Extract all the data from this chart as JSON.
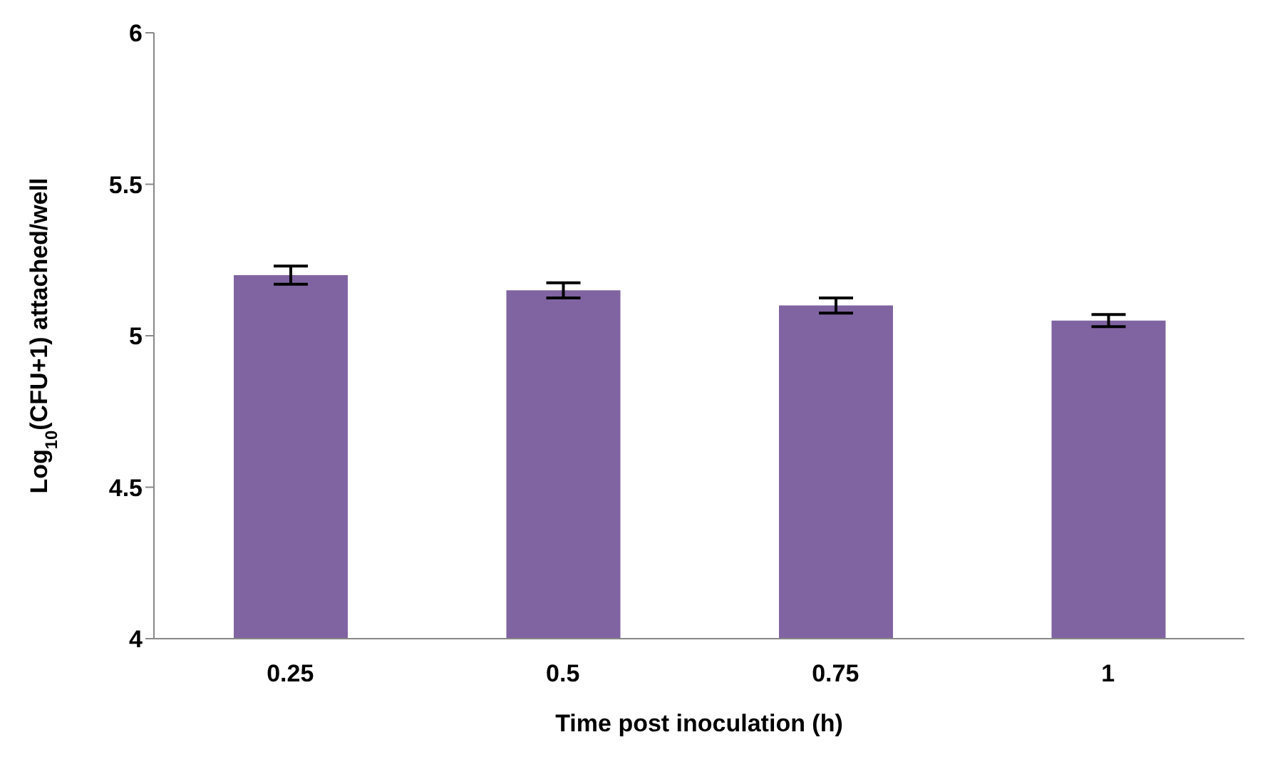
{
  "chart_data": {
    "type": "bar",
    "xlabel": "Time post inoculation (h)",
    "ylabel": "Log$_{10}$(CFU+1) attached/well",
    "categories": [
      "0.25",
      "0.5",
      "0.75",
      "1"
    ],
    "values": [
      5.2,
      5.15,
      5.1,
      5.05
    ],
    "errors": [
      0.03,
      0.025,
      0.025,
      0.02
    ],
    "color": "#8064a2",
    "ylim": [
      4,
      6
    ],
    "yticks": [
      4,
      4.5,
      5,
      5.5,
      6
    ],
    "grid": false
  }
}
